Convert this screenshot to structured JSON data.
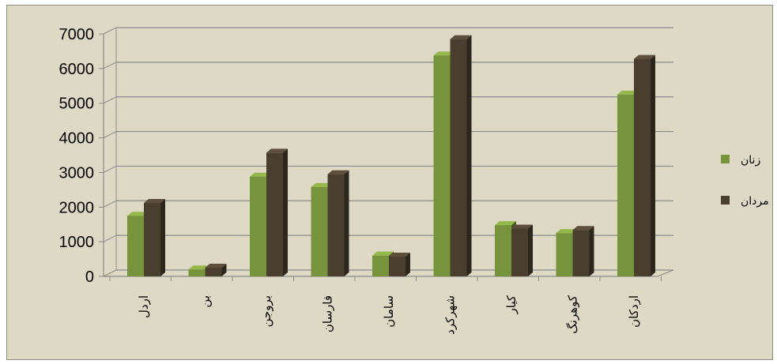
{
  "chart_data": {
    "type": "bar",
    "categories": [
      "اردل",
      "بن",
      "بروجن",
      "فارسان",
      "سامان",
      "شهرکرد",
      "کیار",
      "کوهرنگ",
      "اردکان"
    ],
    "series": [
      {
        "name": "زنان",
        "values": [
          1750,
          200,
          2880,
          2580,
          600,
          6380,
          1480,
          1250,
          5250
        ],
        "color": "#77933c"
      },
      {
        "name": "مردان",
        "values": [
          2120,
          250,
          3570,
          2950,
          570,
          6850,
          1380,
          1340,
          6280
        ],
        "color": "#4a3f2f"
      }
    ],
    "yticks": [
      0,
      1000,
      2000,
      3000,
      4000,
      5000,
      6000,
      7000
    ],
    "ylim": [
      0,
      7000
    ],
    "grid": true,
    "legend_position": "right",
    "title": "",
    "xlabel": "",
    "ylabel": ""
  }
}
